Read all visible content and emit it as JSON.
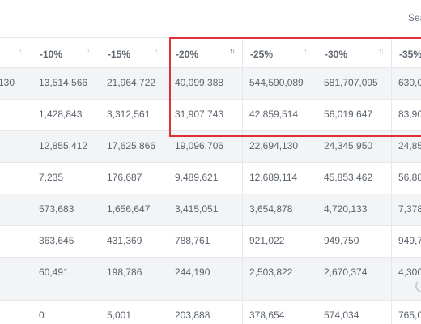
{
  "search": {
    "label": "Sea"
  },
  "headers": [
    {
      "label": "",
      "sort": "↑↓",
      "active": false
    },
    {
      "label": "-10%",
      "sort": "↑↓",
      "active": false
    },
    {
      "label": "-15%",
      "sort": "↑↓",
      "active": false
    },
    {
      "label": "-20%",
      "sort": "↑↓",
      "active": true
    },
    {
      "label": "-25%",
      "sort": "↑↓",
      "active": false
    },
    {
      "label": "-30%",
      "sort": "↑↓",
      "active": false
    },
    {
      "label": "-35%",
      "sort": "",
      "active": false
    }
  ],
  "rows": [
    [
      "130",
      "13,514,566",
      "21,964,722",
      "40,099,388",
      "544,590,089",
      "581,707,095",
      "630,0"
    ],
    [
      "",
      "1,428,843",
      "3,312,561",
      "31,907,743",
      "42,859,514",
      "56,019,647",
      "83,90"
    ],
    [
      "",
      "12,855,412",
      "17,625,866",
      "19,096,706",
      "22,694,130",
      "24,345,950",
      "24,85"
    ],
    [
      "",
      "7,235",
      "176,687",
      "9,489,621",
      "12,689,114",
      "45,853,462",
      "56,88"
    ],
    [
      "",
      "573,683",
      "1,656,647",
      "3,415,051",
      "3,654,878",
      "4,720,133",
      "7,378"
    ],
    [
      "",
      "363,645",
      "431,369",
      "788,761",
      "921,022",
      "949,750",
      "949,7"
    ],
    [
      "",
      "60,491",
      "198,786",
      "244,190",
      "2,503,822",
      "2,670,374",
      "4,300"
    ],
    [
      "",
      "0",
      "5,001",
      "203,888",
      "378,654",
      "574,034",
      "765,0"
    ]
  ]
}
